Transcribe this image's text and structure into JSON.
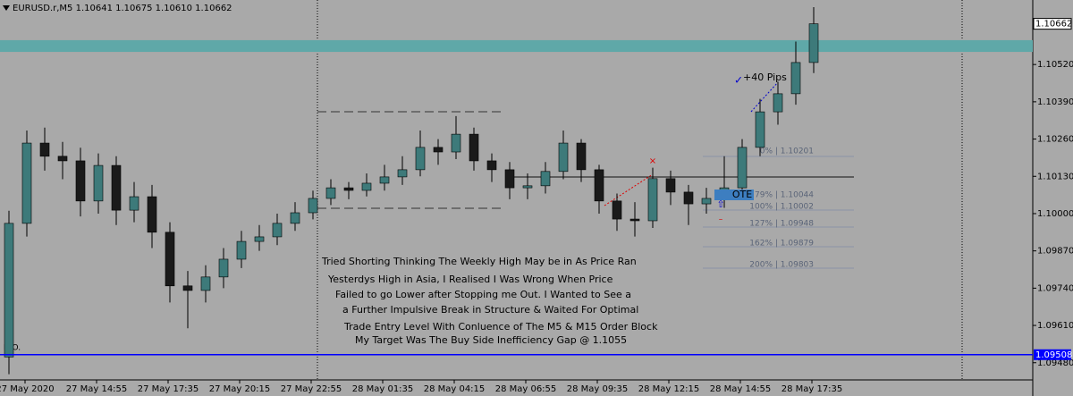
{
  "chart_data": {
    "type": "candlestick",
    "title": "EURUSD.r,M5 1.10641 1.10675 1.10610 1.10662",
    "open": [
      1.095,
      1.09966,
      1.10246,
      1.102,
      1.10184,
      1.10044,
      1.10168,
      1.10012,
      1.10059,
      1.09935,
      1.09748,
      1.09732,
      1.09779,
      1.09841,
      1.09903,
      1.09919,
      1.09966,
      1.10003,
      1.10053,
      1.1009,
      1.10081,
      1.10106,
      1.10128,
      1.10153,
      1.10231,
      1.10215,
      1.10277,
      1.10184,
      1.10153,
      1.1009,
      1.10097,
      1.10147,
      1.10246,
      1.10153,
      1.10044,
      1.09981,
      1.09975,
      1.10122,
      1.10075,
      1.10034,
      1.10053,
      1.1009,
      1.10231,
      1.10355,
      1.10418,
      1.10527
    ],
    "high": [
      1.1001,
      1.1029,
      1.103,
      1.1025,
      1.1023,
      1.1021,
      1.102,
      1.1011,
      1.101,
      1.0997,
      1.098,
      1.0982,
      1.0988,
      1.0994,
      1.0996,
      1.1,
      1.1004,
      1.1008,
      1.1012,
      1.1011,
      1.1014,
      1.1017,
      1.102,
      1.1029,
      1.1026,
      1.1034,
      1.103,
      1.1021,
      1.1018,
      1.1014,
      1.1018,
      1.1029,
      1.1026,
      1.1017,
      1.1007,
      1.1004,
      1.1016,
      1.1015,
      1.101,
      1.1009,
      1.102,
      1.1026,
      1.104,
      1.1046,
      1.106,
      1.1072
    ],
    "low": [
      1.0944,
      1.0992,
      1.1015,
      1.1012,
      1.0999,
      1.1,
      1.0996,
      1.0997,
      1.0988,
      1.0969,
      1.096,
      1.0969,
      1.0974,
      1.0981,
      1.0987,
      1.0989,
      1.0994,
      1.0998,
      1.1003,
      1.1005,
      1.1006,
      1.1008,
      1.101,
      1.1013,
      1.1017,
      1.1019,
      1.1015,
      1.1011,
      1.1005,
      1.1005,
      1.1007,
      1.1012,
      1.1011,
      1.1,
      1.0994,
      1.0992,
      1.0995,
      1.1003,
      1.0996,
      1.1,
      1.1002,
      1.1006,
      1.102,
      1.1031,
      1.1038,
      1.1049
    ],
    "close": [
      1.09966,
      1.10246,
      1.102,
      1.10184,
      1.10044,
      1.10168,
      1.10012,
      1.10059,
      1.09935,
      1.09748,
      1.09732,
      1.09779,
      1.09841,
      1.09903,
      1.09919,
      1.09966,
      1.10003,
      1.10053,
      1.1009,
      1.10081,
      1.10106,
      1.10128,
      1.10153,
      1.10231,
      1.10215,
      1.10277,
      1.10184,
      1.10153,
      1.1009,
      1.10097,
      1.10147,
      1.10246,
      1.10153,
      1.10044,
      1.09981,
      1.09975,
      1.10122,
      1.10075,
      1.10034,
      1.10053,
      1.1009,
      1.10231,
      1.10355,
      1.10418,
      1.10527,
      1.10662
    ],
    "up_color": "#3d7a7a",
    "down_color": "#1a1a1a",
    "x_labels": [
      "27 May 2020",
      "27 May 14:55",
      "27 May 17:35",
      "27 May 20:15",
      "27 May 22:55",
      "28 May 01:35",
      "28 May 04:15",
      "28 May 06:55",
      "28 May 09:35",
      "28 May 12:15",
      "28 May 14:55",
      "28 May 17:35"
    ],
    "ylim": [
      1.0942,
      1.10745
    ],
    "yticks": [
      {
        "value": 1.1052,
        "label": "1.10520"
      },
      {
        "value": 1.1039,
        "label": "1.10390"
      },
      {
        "value": 1.1026,
        "label": "1.10260"
      },
      {
        "value": 1.1013,
        "label": "1.10130"
      },
      {
        "value": 1.1,
        "label": "1.10000"
      },
      {
        "value": 1.0987,
        "label": "1.09870"
      },
      {
        "value": 1.0974,
        "label": "1.09740"
      },
      {
        "value": 1.0961,
        "label": "1.09610"
      },
      {
        "value": 1.0948,
        "label": "1.09480"
      }
    ],
    "last_price": {
      "value": 1.10662,
      "label": "1.10662"
    },
    "level": {
      "value": 1.09508,
      "label": "1.09508",
      "color": "#0000ff"
    },
    "zone": {
      "range": [
        1.10564,
        1.10605
      ],
      "color": "#5fa8a8"
    },
    "fib_labels": [
      "0% | 1.10201",
      "79% | 1.10044",
      "100% | 1.10002",
      "127% | 1.09948",
      "162% | 1.09879",
      "200% | 1.09803"
    ],
    "pips_label": "+40 Pips",
    "ote_label": "OTE",
    "corner_label": "H.O.",
    "notes": [
      "Tried Shorting Thinking The Weekly High May be in As Price Ran",
      "Yesterdys High in Asia, I Realised I Was Wrong When Price",
      "Failed to go Lower after Stopping me Out. I Wanted to See a",
      "a Further Impulsive Break in Structure & Waited For Optimal",
      "Trade Entry Level With Conluence of The M5 & M15 Order Block",
      "My Target Was The Buy Side Inefficiency Gap @ 1.1055"
    ]
  }
}
